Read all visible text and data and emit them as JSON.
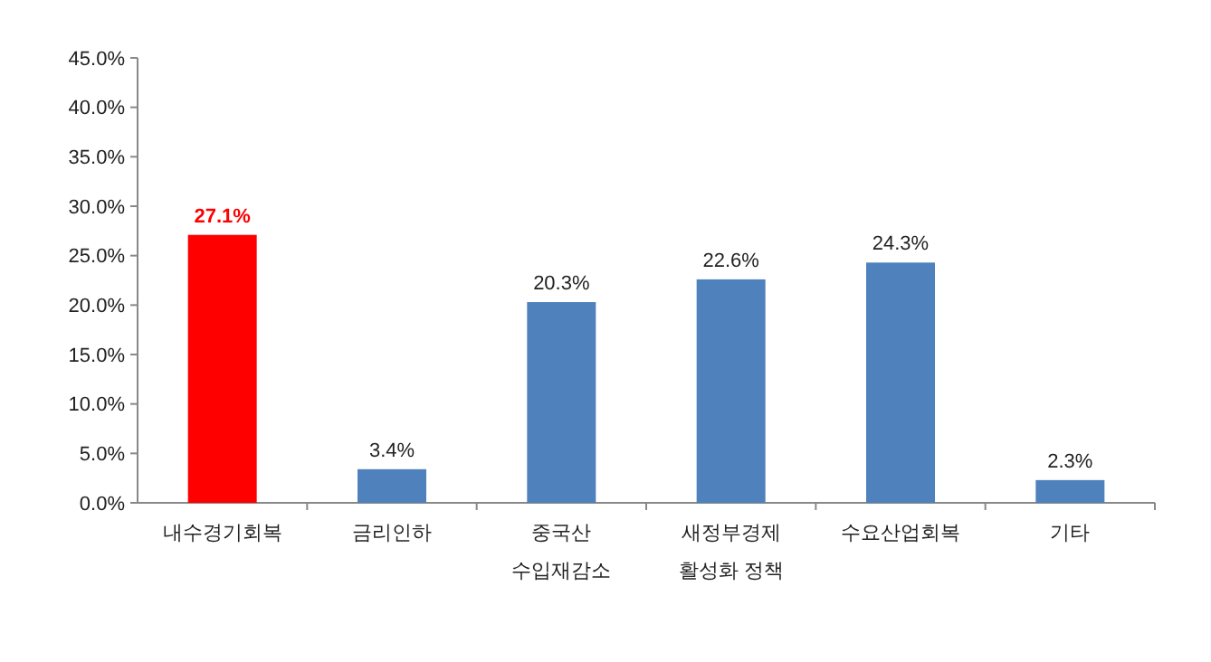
{
  "chart_data": {
    "type": "bar",
    "categories": [
      "내수경기회복",
      "금리인하",
      "중국산\n수입재감소",
      "새정부경제\n활성화 정책",
      "수요산업회복",
      "기타"
    ],
    "values": [
      27.1,
      3.4,
      20.3,
      22.6,
      24.3,
      2.3
    ],
    "colors": [
      "#ff0000",
      "#4f81bd",
      "#4f81bd",
      "#4f81bd",
      "#4f81bd",
      "#4f81bd"
    ],
    "value_labels": [
      "27.1%",
      "3.4%",
      "20.3%",
      "22.6%",
      "24.3%",
      "2.3%"
    ],
    "ylim": [
      0,
      45
    ],
    "yticks": [
      {
        "value": 0,
        "label": "0.0%"
      },
      {
        "value": 5,
        "label": "5.0%"
      },
      {
        "value": 10,
        "label": "10.0%"
      },
      {
        "value": 15,
        "label": "15.0%"
      },
      {
        "value": 20,
        "label": "20.0%"
      },
      {
        "value": 25,
        "label": "25.0%"
      },
      {
        "value": 30,
        "label": "30.0%"
      },
      {
        "value": 35,
        "label": "35.0%"
      },
      {
        "value": 40,
        "label": "40.0%"
      },
      {
        "value": 45,
        "label": "45.0%"
      }
    ],
    "grid": false
  }
}
